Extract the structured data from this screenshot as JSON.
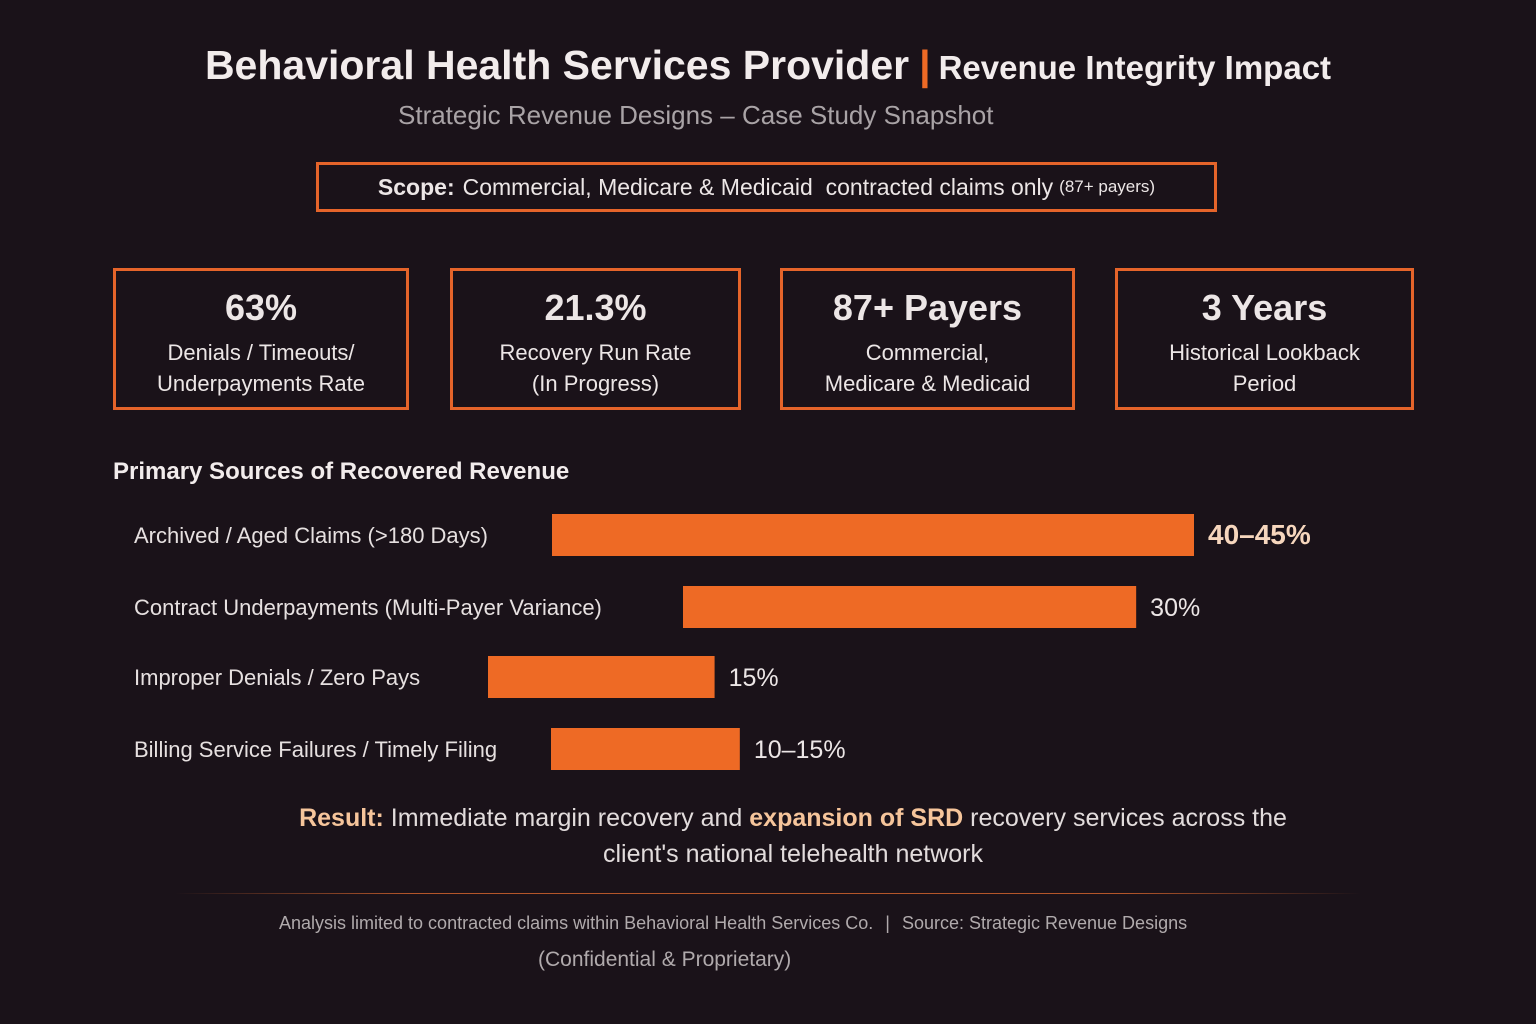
{
  "header": {
    "title": "Behavioral Health Services Provider",
    "separator": "|",
    "title_suffix": "Revenue Integrity Impact",
    "subtitle": "Strategic Revenue Designs – Case Study Snapshot"
  },
  "scope": {
    "label": "Scope:",
    "text": "Commercial, Medicare & Medicaid  contracted claims only",
    "note": "(87+ payers)"
  },
  "metrics": [
    {
      "value": "63%",
      "label_lines": [
        "Denials / Timeouts/",
        "Underpayments Rate"
      ]
    },
    {
      "value": "21.3%",
      "label_lines": [
        "Recovery Run Rate",
        "(In Progress)"
      ]
    },
    {
      "value": "87+ Payers",
      "label_lines": [
        "Commercial,",
        "Medicare & Medicaid"
      ]
    },
    {
      "value": "3 Years",
      "label_lines": [
        "Historical Lookback",
        "Period"
      ]
    }
  ],
  "section_title": "Primary Sources of Recovered Revenue",
  "chart_data": {
    "type": "bar",
    "orientation": "horizontal",
    "categories": [
      "Archived / Aged Claims (>180 Days)",
      "Contract Underpayments (Multi-Payer Variance)",
      "Improper Denials / Zero Pays",
      "Billing Service Failures / Timely Filing"
    ],
    "values": [
      42.5,
      30,
      15,
      12.5
    ],
    "value_labels": [
      "40–45%",
      "30%",
      "15%",
      "10–15%"
    ],
    "bar_color": "#ee6a25",
    "title": "Primary Sources of Recovered Revenue",
    "xlabel": "",
    "ylabel": "",
    "grid": false
  },
  "result": {
    "label": "Result:",
    "pre": "Immediate margin recovery and",
    "emphasis": "expansion of SRD",
    "post": "recovery services across the",
    "line2": "client's national telehealth network"
  },
  "footer": {
    "left": "Analysis limited to contracted claims within Behavioral Health Services Co.",
    "separator": "|",
    "right": "Source: Strategic Revenue Designs",
    "line2": "(Confidential & Proprietary)"
  },
  "colors": {
    "accent": "#ee6a25",
    "background": "#1a1219",
    "highlight": "#f6c59b"
  }
}
